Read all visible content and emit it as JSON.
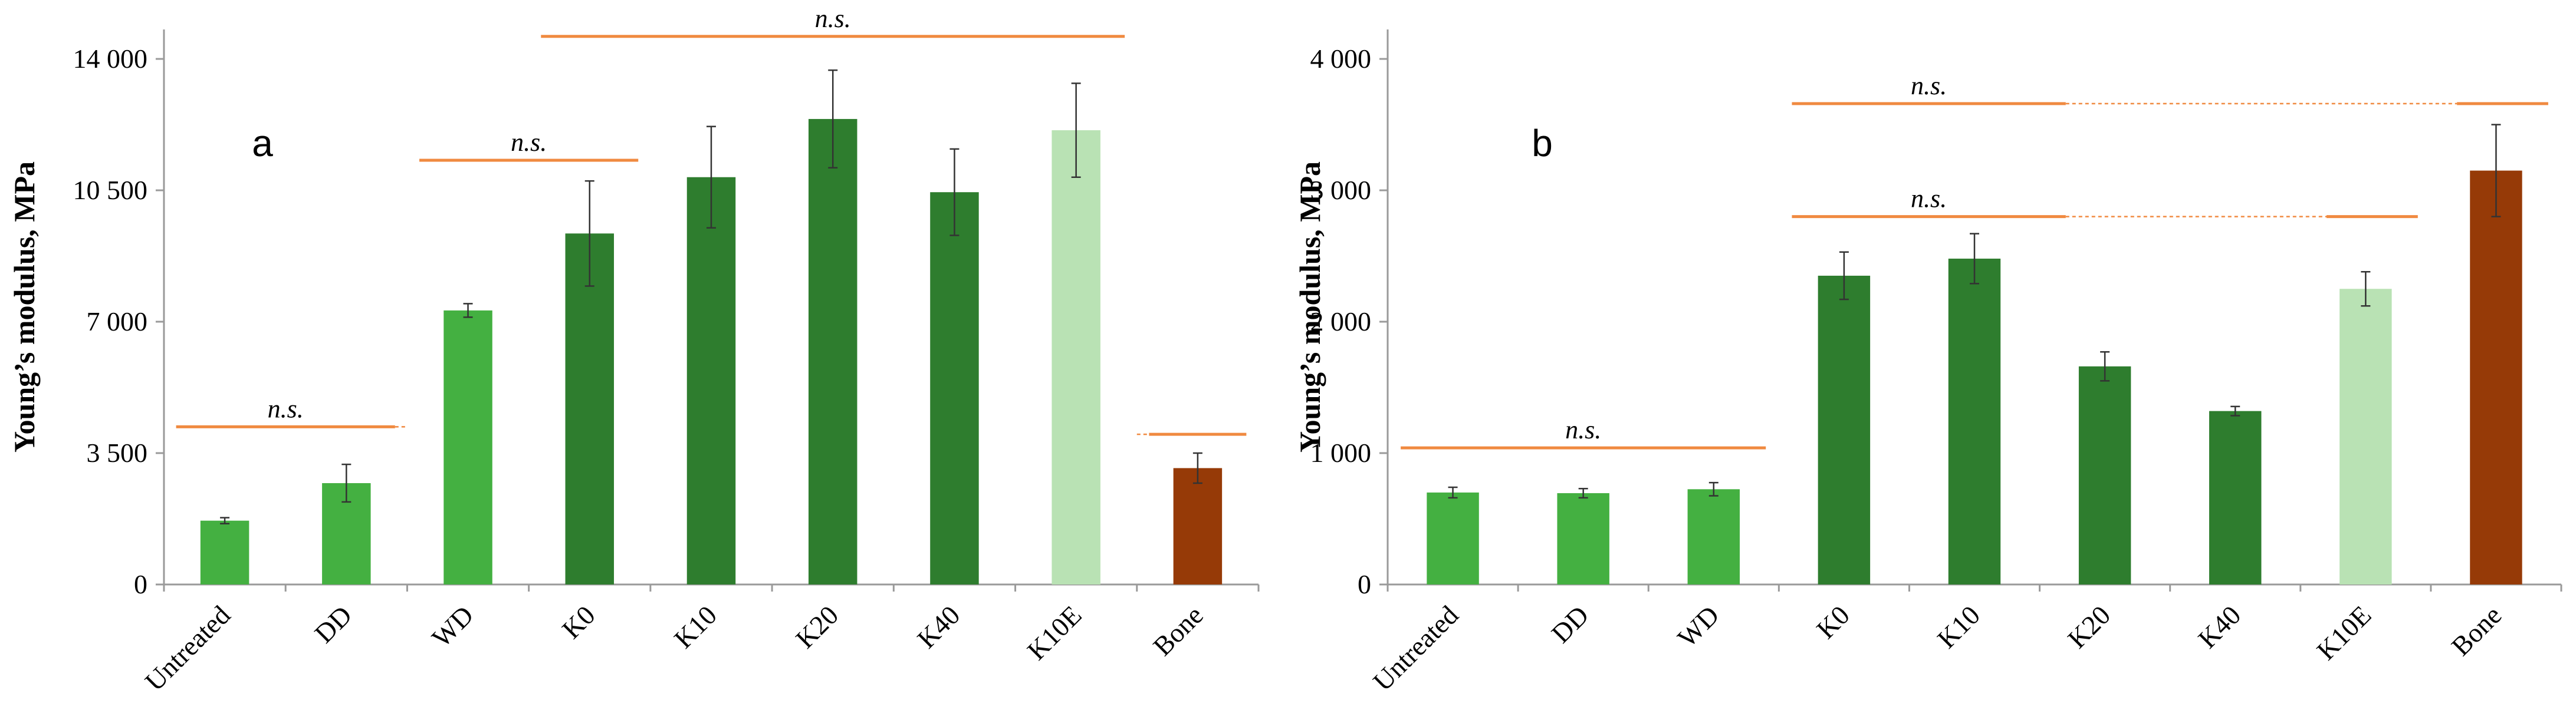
{
  "colors": {
    "untreated": "#44b041",
    "dark": "#2e7d2e",
    "light": "#b9e2b4",
    "bone": "#963a07",
    "sig": "#f08a40",
    "axis": "#9a9a9a"
  },
  "chart_data": [
    {
      "type": "bar",
      "panel_letter": "a",
      "ylabel": "Young’s modulus, MPa",
      "ylim": [
        0,
        14000
      ],
      "yticks": [
        0,
        3500,
        7000,
        10500,
        14000
      ],
      "ytick_labels": [
        "0",
        "3 500",
        "7 000",
        "10 500",
        "14 000"
      ],
      "categories": [
        "Untreated",
        "DD",
        "WD",
        "K0",
        "K10",
        "K20",
        "K40",
        "K10E",
        "Bone"
      ],
      "values": [
        1700,
        2700,
        7300,
        9350,
        10850,
        12400,
        10450,
        12100,
        3100
      ],
      "errors": [
        80,
        500,
        180,
        1400,
        1350,
        1300,
        1150,
        1250,
        400
      ],
      "bar_colors": [
        "untreated",
        "untreated",
        "untreated",
        "dark",
        "dark",
        "dark",
        "dark",
        "light",
        "bone"
      ],
      "annotations": [
        {
          "text": "n.s.",
          "from": 0,
          "to": 1,
          "y": 4200,
          "dotted_to": 1.5
        },
        {
          "text": "n.s.",
          "from": 2,
          "to": 3,
          "y": 11300
        },
        {
          "text": "n.s.",
          "from": 3,
          "to": 7,
          "y": 14600
        },
        {
          "text": "",
          "from": 8,
          "to": 8,
          "y": 4000,
          "dotted_from": 7.5
        }
      ]
    },
    {
      "type": "bar",
      "panel_letter": "b",
      "ylabel": "Young’s modulus, MPa",
      "ylim": [
        0,
        4000
      ],
      "yticks": [
        0,
        1000,
        2000,
        3000,
        4000
      ],
      "ytick_labels": [
        "0",
        "1 000",
        "2 000",
        "3 000",
        "4 000"
      ],
      "categories": [
        "Untreated",
        "DD",
        "WD",
        "K0",
        "K10",
        "K20",
        "K40",
        "K10E",
        "Bone"
      ],
      "values": [
        700,
        695,
        725,
        2350,
        2480,
        1660,
        1320,
        2250,
        3150
      ],
      "errors": [
        40,
        35,
        50,
        180,
        190,
        110,
        35,
        130,
        350
      ],
      "bar_colors": [
        "untreated",
        "untreated",
        "untreated",
        "dark",
        "dark",
        "dark",
        "dark",
        "light",
        "bone"
      ],
      "annotations": [
        {
          "text": "n.s.",
          "from": 0,
          "to": 2,
          "y": 1040
        },
        {
          "text": "n.s.",
          "from": 3,
          "to": 8,
          "y": 3660,
          "dotted_from": 4.7,
          "dotted_to": 7.7
        },
        {
          "text": "n.s.",
          "from": 3,
          "to": 7,
          "y": 2800,
          "dotted_from": 4.7,
          "dotted_to": 6.7
        }
      ]
    }
  ]
}
